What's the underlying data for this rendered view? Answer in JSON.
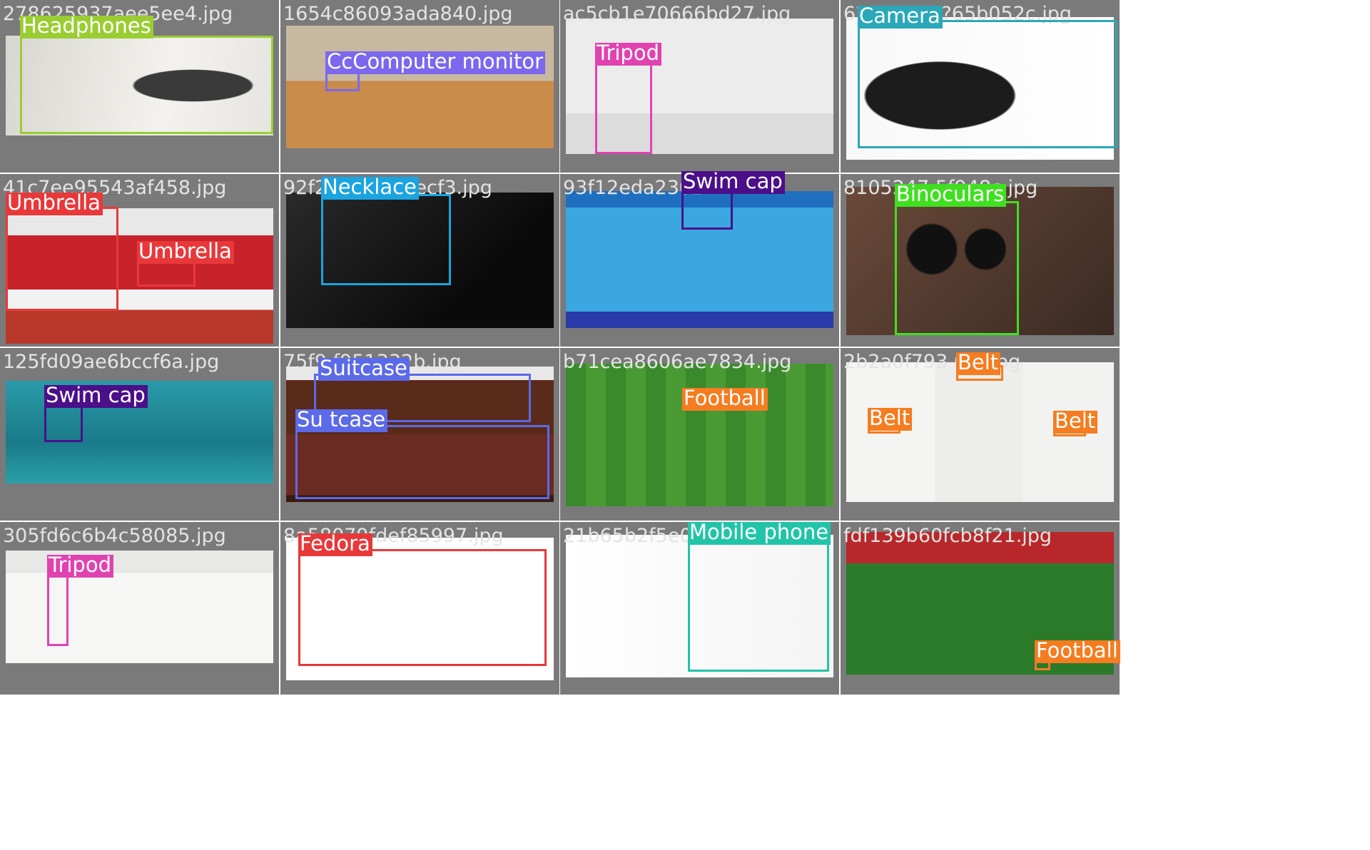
{
  "tiles": [
    {
      "filename": "278625937aee5ee4.jpg",
      "scene": "headphones",
      "labels": [
        {
          "text": "Headphones",
          "color": "#9acd32"
        }
      ]
    },
    {
      "filename": "1654c86093ada840.jpg",
      "scene": "room",
      "labels": [
        {
          "text": "CcComputer monitor",
          "color": "#7b68ee"
        }
      ]
    },
    {
      "filename": "ac5cb1e70666bd27.jpg",
      "scene": "rifle",
      "labels": [
        {
          "text": "Tripod",
          "color": "#e043b0"
        }
      ]
    },
    {
      "filename": "6?Camera?65b052c.jpg",
      "scene": "camera",
      "labels": [
        {
          "text": "Camera",
          "color": "#2aa8b8"
        }
      ]
    },
    {
      "filename": "41c7ee95543af458.jpg",
      "scene": "umbrella",
      "labels": [
        {
          "text": "Umbrella",
          "color": "#e8383a"
        },
        {
          "text": "Umbrella",
          "color": "#e8383a"
        }
      ]
    },
    {
      "filename": "92f2dNecklacecf3.jpg",
      "scene": "necklace",
      "labels": [
        {
          "text": "Necklace",
          "color": "#1aa4e0"
        }
      ]
    },
    {
      "filename": "93f12eda2302",
      "scene": "pool",
      "labels": [
        {
          "text": "Swim cap",
          "color": "#4b0f8a"
        }
      ]
    },
    {
      "filename": "8105247 5f948c.jpg",
      "scene": "binoculars",
      "labels": [
        {
          "text": "Binoculars",
          "color": "#40e020"
        }
      ]
    },
    {
      "filename": "125fd09ae6bccf6a.jpg",
      "scene": "sea",
      "labels": [
        {
          "text": "Swim cap",
          "color": "#4b0f8a"
        }
      ]
    },
    {
      "filename": "75f9 f951332b.jpg",
      "scene": "suitcase",
      "labels": [
        {
          "text": "Suitcase",
          "color": "#5b6ae8"
        },
        {
          "text": "Su tcase",
          "color": "#5b6ae8"
        }
      ]
    },
    {
      "filename": "b71cea8606ae7834.jpg",
      "scene": "pitch",
      "labels": [
        {
          "text": "Football",
          "color": "#f57c20"
        }
      ]
    },
    {
      "filename": "2b2a0f793 0 0.jpg",
      "scene": "jeans",
      "labels": [
        {
          "text": "Belt",
          "color": "#f57c20"
        },
        {
          "text": "Belt",
          "color": "#f57c20"
        },
        {
          "text": "Belt",
          "color": "#f57c20"
        }
      ]
    },
    {
      "filename": "305fd6c6b4c58085.jpg",
      "scene": "gun",
      "labels": [
        {
          "text": "Tripod",
          "color": "#e043b0"
        }
      ]
    },
    {
      "filename": "8a58079fdef85997.jpg",
      "scene": "hat",
      "labels": [
        {
          "text": "Fedora",
          "color": "#e8383a"
        }
      ]
    },
    {
      "filename": "21b65b2f5e025",
      "scene": "phone",
      "labels": [
        {
          "text": "Mobile phone",
          "color": "#22c4a8"
        }
      ]
    },
    {
      "filename": "fdf139b60fcb8f21.jpg",
      "scene": "stadium",
      "labels": [
        {
          "text": "Football",
          "color": "#f57c20"
        }
      ]
    }
  ]
}
